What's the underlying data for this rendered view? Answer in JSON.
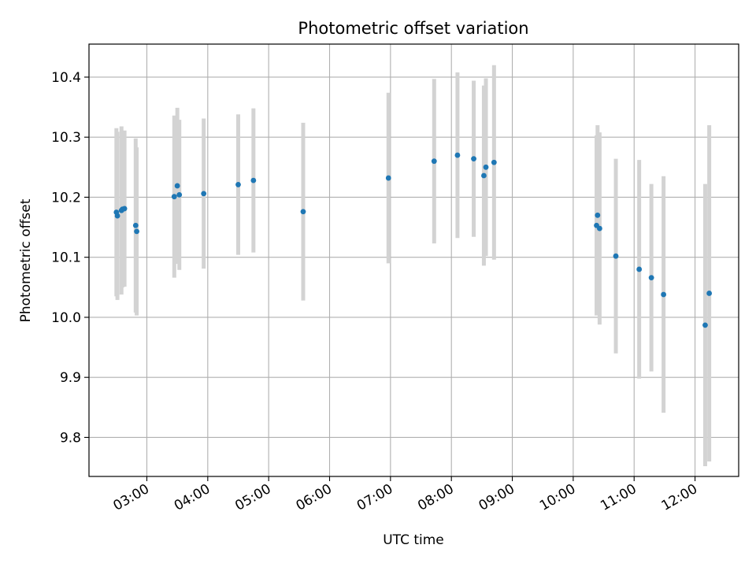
{
  "chart_data": {
    "type": "scatter",
    "title": "Photometric offset variation",
    "xlabel": "UTC time",
    "ylabel": "Photometric offset",
    "x_is_time": true,
    "xlim": [
      "02:03",
      "12:43"
    ],
    "ylim": [
      9.735,
      10.455
    ],
    "grid": true,
    "xticks": [
      "03:00",
      "04:00",
      "05:00",
      "06:00",
      "07:00",
      "08:00",
      "09:00",
      "10:00",
      "11:00",
      "12:00"
    ],
    "yticks": [
      "9.8",
      "9.9",
      "10.0",
      "10.1",
      "10.2",
      "10.3",
      "10.4"
    ],
    "marker_color": "#1f77b4",
    "errorbar_color": "#d3d3d3",
    "points": [
      {
        "x": "02:30",
        "y": 10.175,
        "yerr": 0.14
      },
      {
        "x": "02:31",
        "y": 10.169,
        "yerr": 0.14
      },
      {
        "x": "02:35",
        "y": 10.178,
        "yerr": 0.14
      },
      {
        "x": "02:36",
        "y": 10.18,
        "yerr": 0.13
      },
      {
        "x": "02:38",
        "y": 10.181,
        "yerr": 0.13
      },
      {
        "x": "02:49",
        "y": 10.153,
        "yerr": 0.145
      },
      {
        "x": "02:50",
        "y": 10.143,
        "yerr": 0.14
      },
      {
        "x": "03:27",
        "y": 10.201,
        "yerr": 0.135
      },
      {
        "x": "03:30",
        "y": 10.219,
        "yerr": 0.13
      },
      {
        "x": "03:32",
        "y": 10.204,
        "yerr": 0.125
      },
      {
        "x": "03:56",
        "y": 10.206,
        "yerr": 0.125
      },
      {
        "x": "04:30",
        "y": 10.221,
        "yerr": 0.117
      },
      {
        "x": "04:45",
        "y": 10.228,
        "yerr": 0.12
      },
      {
        "x": "05:34",
        "y": 10.176,
        "yerr": 0.148
      },
      {
        "x": "06:58",
        "y": 10.232,
        "yerr": 0.142
      },
      {
        "x": "07:43",
        "y": 10.26,
        "yerr": 0.137
      },
      {
        "x": "08:06",
        "y": 10.27,
        "yerr": 0.138
      },
      {
        "x": "08:22",
        "y": 10.264,
        "yerr": 0.13
      },
      {
        "x": "08:32",
        "y": 10.236,
        "yerr": 0.15
      },
      {
        "x": "08:34",
        "y": 10.25,
        "yerr": 0.148
      },
      {
        "x": "08:42",
        "y": 10.258,
        "yerr": 0.162
      },
      {
        "x": "10:23",
        "y": 10.153,
        "yerr": 0.15
      },
      {
        "x": "10:24",
        "y": 10.17,
        "yerr": 0.15
      },
      {
        "x": "10:26",
        "y": 10.148,
        "yerr": 0.16
      },
      {
        "x": "10:42",
        "y": 10.102,
        "yerr": 0.162
      },
      {
        "x": "11:05",
        "y": 10.08,
        "yerr": 0.182
      },
      {
        "x": "11:17",
        "y": 10.066,
        "yerr": 0.156
      },
      {
        "x": "11:29",
        "y": 10.038,
        "yerr": 0.197
      },
      {
        "x": "12:10",
        "y": 9.987,
        "yerr": 0.235
      },
      {
        "x": "12:14",
        "y": 10.04,
        "yerr": 0.28
      }
    ]
  }
}
